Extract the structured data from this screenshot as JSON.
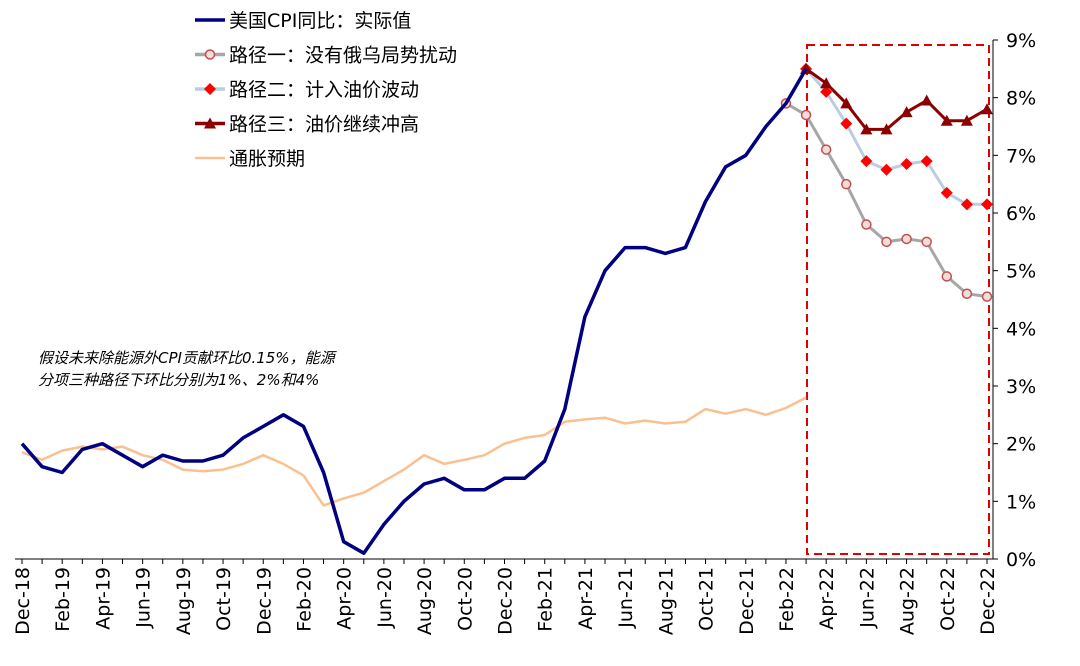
{
  "chart_data": {
    "type": "line",
    "annotation": [
      "假设未来除能源外CPI贡献环比0.15%，能源",
      "分项三种路径下环比分别为1%、2%和4%"
    ],
    "categories": [
      "Dec-18",
      null,
      "Feb-19",
      null,
      "Apr-19",
      null,
      "Jun-19",
      null,
      "Aug-19",
      null,
      "Oct-19",
      null,
      "Dec-19",
      null,
      "Feb-20",
      null,
      "Apr-20",
      null,
      "Jun-20",
      null,
      "Aug-20",
      null,
      "Oct-20",
      null,
      "Dec-20",
      null,
      "Feb-21",
      null,
      "Apr-21",
      null,
      "Jun-21",
      null,
      "Aug-21",
      null,
      "Oct-21",
      null,
      "Dec-21",
      null,
      "Feb-22",
      null,
      "Apr-22",
      null,
      "Jun-22",
      null,
      "Aug-22",
      null,
      "Oct-22",
      null,
      "Dec-22"
    ],
    "series": [
      {
        "name": "美国CPI同比：实际值",
        "color": "#000080",
        "marker": "none",
        "values": [
          2.0,
          1.6,
          1.5,
          1.9,
          2.0,
          1.8,
          1.6,
          1.8,
          1.7,
          1.7,
          1.8,
          2.1,
          2.3,
          2.5,
          2.3,
          1.5,
          0.3,
          0.1,
          0.6,
          1.0,
          1.3,
          1.4,
          1.2,
          1.2,
          1.4,
          1.4,
          1.7,
          2.6,
          4.2,
          5.0,
          5.4,
          5.4,
          5.3,
          5.4,
          6.2,
          6.8,
          7.0,
          7.5,
          7.9,
          8.5,
          null,
          null,
          null,
          null,
          null,
          null,
          null,
          null,
          null
        ]
      },
      {
        "name": "路径一：没有俄乌局势扰动",
        "color": "#a6a6a6",
        "marker": "circle",
        "values": [
          null,
          null,
          null,
          null,
          null,
          null,
          null,
          null,
          null,
          null,
          null,
          null,
          null,
          null,
          null,
          null,
          null,
          null,
          null,
          null,
          null,
          null,
          null,
          null,
          null,
          null,
          null,
          null,
          null,
          null,
          null,
          null,
          null,
          null,
          null,
          null,
          null,
          null,
          7.9,
          7.7,
          7.1,
          6.5,
          5.8,
          5.5,
          5.55,
          5.5,
          4.9,
          4.6,
          4.55
        ]
      },
      {
        "name": "路径二：计入油价波动",
        "color": "#b9cde5",
        "marker": "diamond",
        "values": [
          null,
          null,
          null,
          null,
          null,
          null,
          null,
          null,
          null,
          null,
          null,
          null,
          null,
          null,
          null,
          null,
          null,
          null,
          null,
          null,
          null,
          null,
          null,
          null,
          null,
          null,
          null,
          null,
          null,
          null,
          null,
          null,
          null,
          null,
          null,
          null,
          null,
          null,
          null,
          8.5,
          8.1,
          7.55,
          6.9,
          6.75,
          6.85,
          6.9,
          6.35,
          6.15,
          6.15
        ]
      },
      {
        "name": "路径三：油价继续冲高",
        "color": "#8b0000",
        "marker": "triangle",
        "values": [
          null,
          null,
          null,
          null,
          null,
          null,
          null,
          null,
          null,
          null,
          null,
          null,
          null,
          null,
          null,
          null,
          null,
          null,
          null,
          null,
          null,
          null,
          null,
          null,
          null,
          null,
          null,
          null,
          null,
          null,
          null,
          null,
          null,
          null,
          null,
          null,
          null,
          null,
          null,
          8.5,
          8.25,
          7.9,
          7.45,
          7.45,
          7.75,
          7.95,
          7.6,
          7.6,
          7.8
        ]
      },
      {
        "name": "通胀预期",
        "color": "#fac090",
        "marker": "none",
        "values": [
          1.85,
          1.72,
          1.88,
          1.95,
          1.9,
          1.95,
          1.8,
          1.72,
          1.55,
          1.52,
          1.55,
          1.65,
          1.8,
          1.65,
          1.45,
          0.93,
          1.05,
          1.15,
          1.35,
          1.55,
          1.8,
          1.65,
          1.72,
          1.8,
          2.0,
          2.1,
          2.15,
          2.38,
          2.42,
          2.45,
          2.35,
          2.4,
          2.35,
          2.38,
          2.6,
          2.52,
          2.6,
          2.5,
          2.62,
          2.8,
          null,
          null,
          null,
          null,
          null,
          null,
          null,
          null,
          null
        ]
      }
    ],
    "ylim": [
      0,
      9
    ],
    "yticks": [
      {
        "value": 0,
        "label": "0%"
      },
      {
        "value": 1,
        "label": "1%"
      },
      {
        "value": 2,
        "label": "2%"
      },
      {
        "value": 3,
        "label": "3%"
      },
      {
        "value": 4,
        "label": "4%"
      },
      {
        "value": 5,
        "label": "5%"
      },
      {
        "value": 6,
        "label": "6%"
      },
      {
        "value": 7,
        "label": "7%"
      },
      {
        "value": 8,
        "label": "8%"
      },
      {
        "value": 9,
        "label": "9%"
      }
    ],
    "y_axis_side": "right",
    "legend_position": "upper left"
  }
}
